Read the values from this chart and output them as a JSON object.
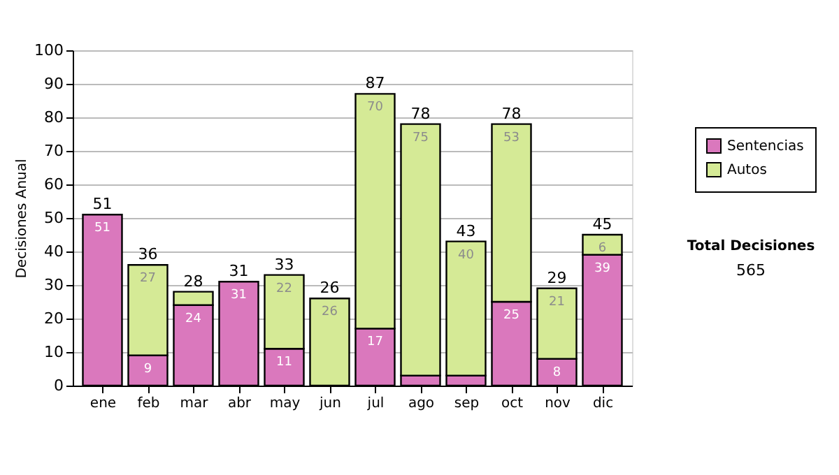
{
  "chart_data": {
    "type": "bar",
    "stacked": true,
    "ylabel": "Decisiones Anual",
    "categories": [
      "ene",
      "feb",
      "mar",
      "abr",
      "may",
      "jun",
      "jul",
      "ago",
      "sep",
      "oct",
      "nov",
      "dic"
    ],
    "series": [
      {
        "name": "Sentencias",
        "color": "#da78bd",
        "values": [
          51,
          9,
          24,
          31,
          11,
          0,
          17,
          3,
          3,
          25,
          8,
          39
        ],
        "value_labels": [
          "51",
          "9",
          "24",
          "31",
          "11",
          null,
          "17",
          null,
          null,
          "25",
          "8",
          "39"
        ]
      },
      {
        "name": "Autos",
        "color": "#d5ea96",
        "values": [
          0,
          27,
          4,
          0,
          22,
          26,
          70,
          75,
          40,
          53,
          21,
          6
        ],
        "value_labels": [
          null,
          "27",
          null,
          null,
          "22",
          "26",
          "70",
          "75",
          "40",
          "53",
          "21",
          "6"
        ]
      }
    ],
    "totals": [
      "51",
      "36",
      "28",
      "31",
      "33",
      "26",
      "87",
      "78",
      "43",
      "78",
      "29",
      "45"
    ],
    "ylim": [
      0,
      100
    ],
    "yticks": [
      0,
      10,
      20,
      30,
      40,
      50,
      60,
      70,
      80,
      90,
      100
    ],
    "grid": "y",
    "legend": "right",
    "annotations": [
      "Total Decisiones",
      "565"
    ]
  }
}
